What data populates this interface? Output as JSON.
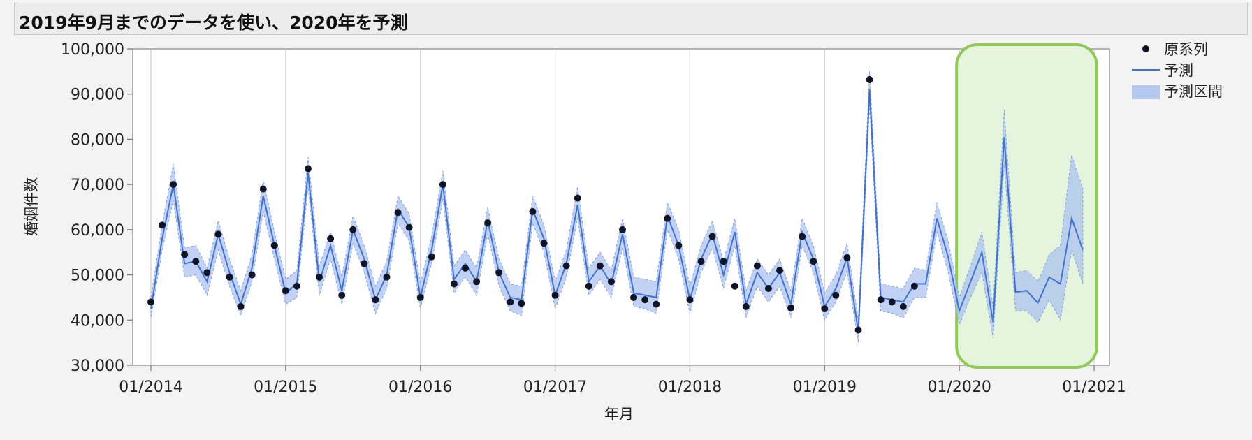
{
  "title": "2019年9月までのデータを使い、2020年を予測",
  "chart_data": {
    "type": "line",
    "xlabel": "年月",
    "ylabel": "婚姻件数",
    "ylim": [
      30000,
      100000
    ],
    "y_ticks": [
      30000,
      40000,
      50000,
      60000,
      70000,
      80000,
      90000,
      100000
    ],
    "y_tick_labels": [
      "30,000",
      "40,000",
      "50,000",
      "60,000",
      "70,000",
      "80,000",
      "90,000",
      "100,000"
    ],
    "x_tick_labels": [
      "01/2014",
      "01/2015",
      "01/2016",
      "01/2017",
      "01/2018",
      "01/2019",
      "01/2020",
      "01/2021"
    ],
    "x_range": [
      "2014-01",
      "2021-01"
    ],
    "grid": "vertical",
    "legend": {
      "placement": "top-right",
      "items": [
        {
          "label": "原系列",
          "kind": "dot",
          "color": "#111122"
        },
        {
          "label": "予測",
          "kind": "line",
          "color": "#3f72d4"
        },
        {
          "label": "予測区間",
          "kind": "band",
          "color": "#b4c8f2"
        }
      ]
    },
    "highlight": {
      "from": "2020-01",
      "to": "2020-12",
      "fill": "#e5f4dc",
      "stroke": "#8fcb55"
    },
    "series": [
      {
        "name": "原系列",
        "kind": "points",
        "start": "2014-01",
        "values": [
          44000,
          61000,
          70000,
          54500,
          53000,
          50500,
          59000,
          49500,
          43000,
          50000,
          69000,
          56500,
          46500,
          47500,
          73500,
          49500,
          58000,
          45500,
          60000,
          52500,
          44500,
          49500,
          63800,
          60500,
          45000,
          54000,
          70000,
          48000,
          51500,
          48500,
          61500,
          50500,
          44000,
          43700,
          64000,
          57000,
          45500,
          52000,
          67000,
          47500,
          52000,
          48500,
          60000,
          45000,
          44500,
          43500,
          62500,
          56500,
          44500,
          53000,
          58500,
          53000,
          47500,
          43000,
          52000,
          47000,
          51000,
          42700,
          58500,
          53000,
          42500,
          45500,
          53800,
          37800,
          93200,
          44500,
          44000,
          43000,
          47500
        ]
      },
      {
        "name": "予測",
        "kind": "line",
        "start": "2014-01",
        "values": [
          42500,
          58000,
          70000,
          52500,
          53000,
          48500,
          59000,
          50500,
          43500,
          51500,
          67500,
          56500,
          46000,
          48000,
          72500,
          48500,
          56500,
          46500,
          60000,
          53500,
          44500,
          50000,
          64500,
          60500,
          45000,
          55500,
          70000,
          49000,
          52500,
          48500,
          62000,
          50500,
          45000,
          44500,
          64500,
          58000,
          45500,
          52500,
          65500,
          48500,
          52000,
          48000,
          59000,
          46000,
          45500,
          45000,
          63000,
          56500,
          44500,
          53500,
          59000,
          50000,
          59500,
          43500,
          50500,
          47000,
          50500,
          43500,
          59500,
          53500,
          43000,
          47000,
          53800,
          37500,
          91000,
          45000,
          44500,
          44000,
          48000,
          48000,
          62500,
          54000,
          42000,
          48500,
          55000,
          39500,
          80500,
          46200,
          46500,
          43800,
          49500,
          48000,
          62500,
          55500
        ]
      },
      {
        "name": "予測区間",
        "kind": "band",
        "start": "2014-01",
        "lower": [
          40500,
          55500,
          66500,
          49500,
          50000,
          45500,
          55500,
          47500,
          41000,
          48500,
          64000,
          53500,
          43500,
          45000,
          69500,
          45500,
          53500,
          43500,
          57000,
          50500,
          41500,
          47000,
          61500,
          57500,
          42500,
          52500,
          67000,
          46000,
          49500,
          45500,
          59000,
          47500,
          42000,
          41000,
          61500,
          55000,
          42500,
          49500,
          62500,
          45500,
          49000,
          45000,
          56000,
          43000,
          42500,
          41500,
          60000,
          53500,
          41500,
          50500,
          56000,
          47000,
          56500,
          40500,
          47500,
          44000,
          47500,
          40500,
          56500,
          50500,
          40000,
          44000,
          50800,
          35000,
          87500,
          42000,
          41500,
          40500,
          45000,
          45000,
          59500,
          50500,
          39000,
          45000,
          50500,
          36000,
          74500,
          42000,
          42000,
          39500,
          44500,
          40000,
          55500,
          48000
        ],
        "upper": [
          45000,
          61000,
          74500,
          56000,
          56500,
          51500,
          62000,
          53500,
          46500,
          54500,
          71000,
          59500,
          49000,
          51000,
          76000,
          52000,
          59500,
          49500,
          63000,
          56500,
          47500,
          53000,
          67500,
          63500,
          48000,
          58500,
          73000,
          52000,
          55500,
          51500,
          65000,
          53500,
          48000,
          47500,
          67500,
          61000,
          48500,
          55500,
          69500,
          51500,
          55000,
          51000,
          62500,
          49500,
          49000,
          48500,
          66000,
          60000,
          47500,
          56500,
          62000,
          53000,
          62500,
          46500,
          53500,
          50000,
          53500,
          46500,
          62500,
          56500,
          46000,
          50000,
          57000,
          40000,
          95000,
          48000,
          47500,
          47000,
          51500,
          51000,
          66000,
          57500,
          45000,
          52000,
          59500,
          43000,
          86500,
          50500,
          51000,
          48500,
          54500,
          56500,
          76500,
          69000
        ]
      }
    ]
  }
}
